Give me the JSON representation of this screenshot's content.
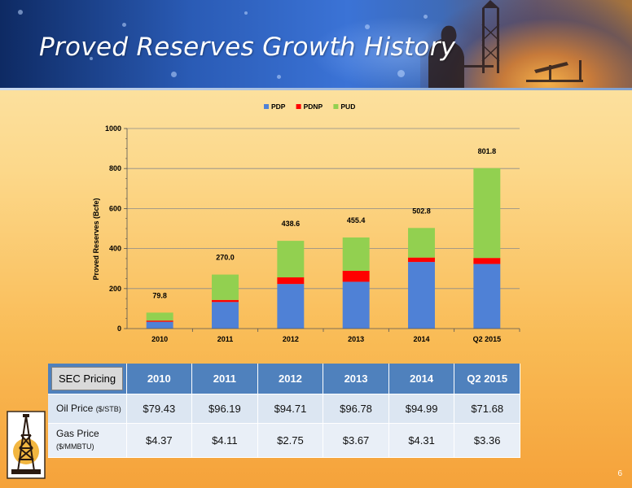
{
  "slide": {
    "title": "Proved Reserves Growth History",
    "page_number": "6"
  },
  "chart_data": {
    "type": "bar",
    "stacked": true,
    "categories": [
      "2010",
      "2011",
      "2012",
      "2013",
      "2014",
      "Q2 2015"
    ],
    "series": [
      {
        "name": "PDP",
        "color": "#4f81d6",
        "values": [
          34,
          133,
          223,
          234,
          333,
          323
        ]
      },
      {
        "name": "PDNP",
        "color": "#ff0000",
        "values": [
          6,
          10,
          33,
          55,
          22,
          30
        ]
      },
      {
        "name": "PUD",
        "color": "#92d050",
        "values": [
          39.8,
          127,
          182.6,
          166.4,
          147.8,
          448.8
        ]
      }
    ],
    "totals": [
      "79.8",
      "270.0",
      "438.6",
      "455.4",
      "502.8",
      "801.8"
    ],
    "ylabel": "Proved Reserves (Bcfe)",
    "ylim": [
      0,
      1000
    ],
    "yticks": [
      "0",
      "200",
      "400",
      "600",
      "800",
      "1000"
    ],
    "grid": true,
    "legend_position": "top"
  },
  "pricing_table": {
    "corner_label": "SEC Pricing",
    "columns": [
      "2010",
      "2011",
      "2012",
      "2013",
      "2014",
      "Q2 2015"
    ],
    "rows": [
      {
        "label": "Oil Price",
        "unit": "($/STB)",
        "values": [
          "$79.43",
          "$96.19",
          "$94.71",
          "$96.78",
          "$94.99",
          "$71.68"
        ]
      },
      {
        "label": "Gas Price",
        "unit": "($/MMBTU)",
        "values": [
          "$4.37",
          "$4.11",
          "$2.75",
          "$3.67",
          "$4.31",
          "$3.36"
        ]
      }
    ]
  },
  "icons": {
    "logo": "oil-derrick-logo",
    "header_image": "oil-worker-pumpjack-silhouette"
  }
}
